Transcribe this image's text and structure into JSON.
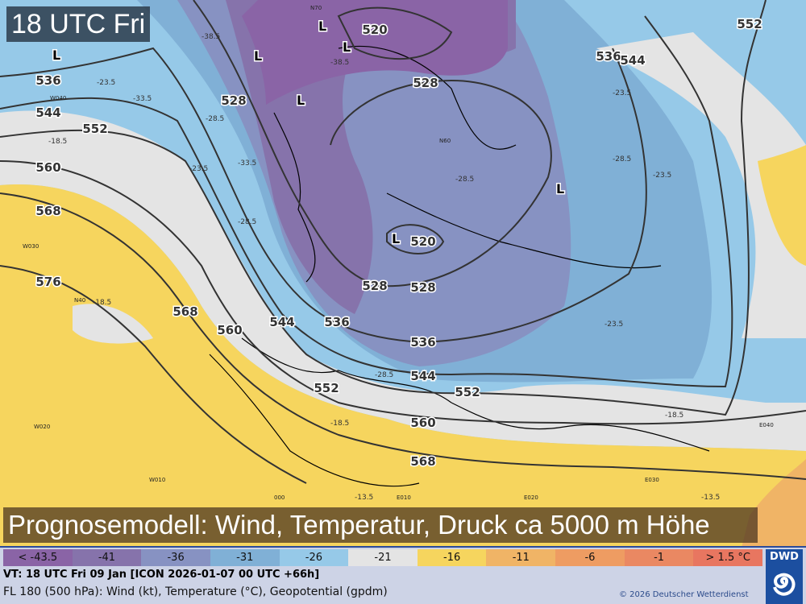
{
  "time_label": "18 UTC Fri",
  "banner": "Prognosemodell: Wind, Temperatur, Druck ca 5000 m Höhe",
  "legend": [
    {
      "label": "< -43.5",
      "color": "#8a64a6"
    },
    {
      "label": "-41",
      "color": "#8673ab"
    },
    {
      "label": "-36",
      "color": "#8792c2"
    },
    {
      "label": "-31",
      "color": "#80b0d6"
    },
    {
      "label": "-26",
      "color": "#96c9e8"
    },
    {
      "label": "-21",
      "color": "#e4e4e4"
    },
    {
      "label": "-16",
      "color": "#f6d55e"
    },
    {
      "label": "-11",
      "color": "#f0b466"
    },
    {
      "label": "-6",
      "color": "#ee9c62"
    },
    {
      "label": "-1",
      "color": "#ea8862"
    },
    {
      "label": "> 1.5 °C",
      "color": "#e87660"
    }
  ],
  "footer": {
    "vt": "VT: 18 UTC Fri  09 Jan [ICON 2026-01-07 00 UTC +66h]",
    "fl": "FL 180 (500 hPa): Wind (kt), Temperature (°C), Geopotential (gpdm)",
    "copyright": "© 2026 Deutscher Wetterdienst",
    "logo": "DWD"
  },
  "map": {
    "contour_labels": [
      "520",
      "520",
      "528",
      "528",
      "528",
      "528",
      "536",
      "536",
      "536",
      "536",
      "544",
      "544",
      "544",
      "544",
      "552",
      "552",
      "552",
      "552",
      "560",
      "560",
      "560",
      "568",
      "568",
      "568",
      "576"
    ],
    "temp_labels": [
      "-38.5",
      "-38.5",
      "-33.5",
      "-33.5",
      "-28.5",
      "-28.5",
      "-28.5",
      "-28.5",
      "-23.5",
      "-23.5",
      "-23.5",
      "-23.5",
      "-18.5",
      "-18.5",
      "-18.5",
      "-18.5",
      "-13.5",
      "-13.5",
      "-28.5",
      "-23.5"
    ],
    "low_marker": "L",
    "grid_labels": [
      "W040",
      "W030",
      "W020",
      "W010",
      "000",
      "E010",
      "E020",
      "E030",
      "E040",
      "N40",
      "N60",
      "N70"
    ]
  }
}
